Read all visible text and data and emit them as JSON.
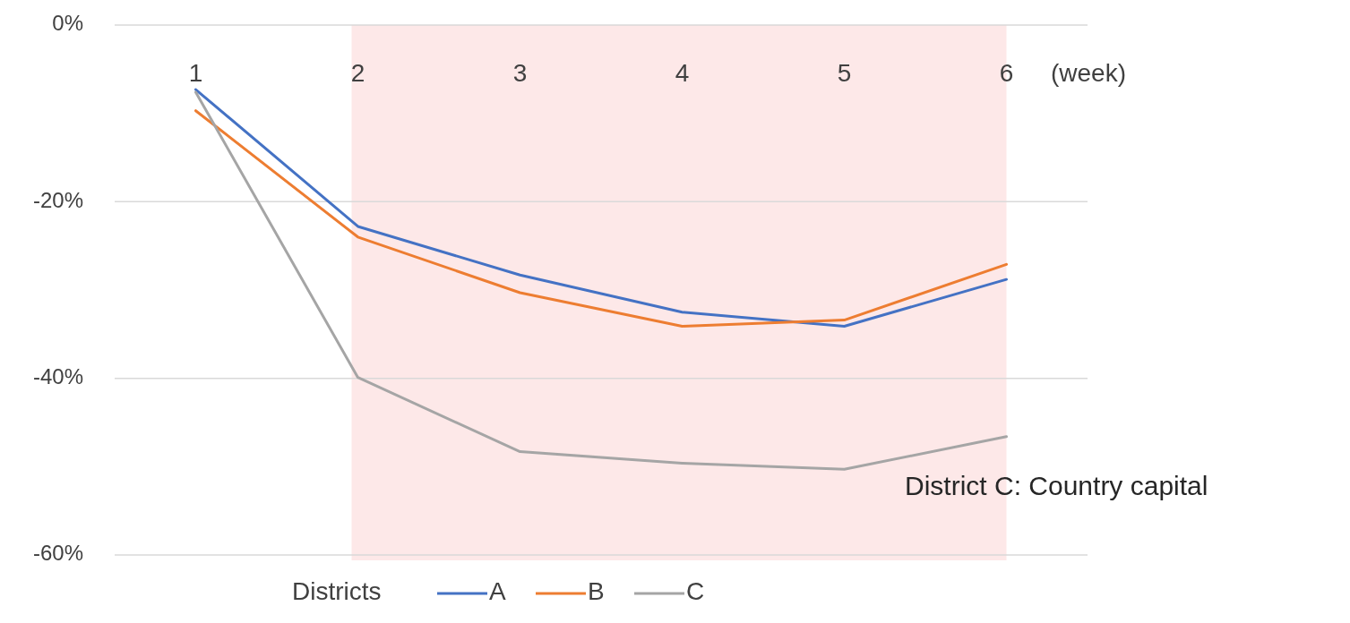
{
  "chart_data": {
    "type": "line",
    "xlabel": "(week)",
    "legend_title": "Districts",
    "legend": "bottom",
    "grid": "y",
    "categories": [
      "1",
      "2",
      "3",
      "4",
      "5",
      "6"
    ],
    "series": [
      {
        "name": "A",
        "color": "#4472c4",
        "values": [
          -7.3,
          -22.8,
          -28.3,
          -32.5,
          -34.1,
          -28.8
        ]
      },
      {
        "name": "B",
        "color": "#ed7d31",
        "values": [
          -9.7,
          -24,
          -30.3,
          -34.1,
          -33.4,
          -27.1
        ]
      },
      {
        "name": "C",
        "color": "#a5a5a5",
        "values": [
          -7.6,
          -39.9,
          -48.3,
          -49.6,
          -50.3,
          -46.6
        ]
      }
    ],
    "ylim": [
      -60,
      0
    ],
    "yticks": [
      {
        "value": -60,
        "label": "-60%"
      },
      {
        "value": -40,
        "label": "-40%"
      },
      {
        "value": -20,
        "label": "-20%"
      },
      {
        "value": 0,
        "label": "0%"
      }
    ],
    "bands": [
      {
        "axis": "x",
        "from": "2",
        "to": "6",
        "color": "#fde8e8"
      }
    ],
    "annotations": [
      "District C: Country capital"
    ]
  }
}
